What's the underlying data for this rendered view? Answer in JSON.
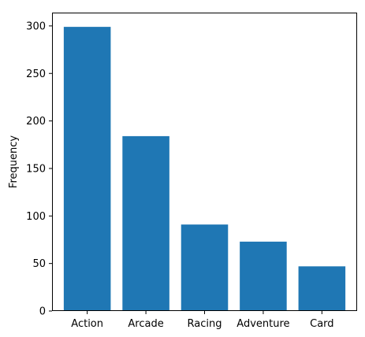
{
  "chart_data": {
    "type": "bar",
    "categories": [
      "Action",
      "Arcade",
      "Racing",
      "Adventure",
      "Card"
    ],
    "values": [
      299,
      184,
      91,
      73,
      47
    ],
    "title": "",
    "xlabel": "",
    "ylabel": "Frequency",
    "ylim": [
      0,
      314
    ],
    "yticks": [
      0,
      50,
      100,
      150,
      200,
      250,
      300
    ],
    "ytick_labels": [
      "0",
      "50",
      "100",
      "150",
      "200",
      "250",
      "300"
    ],
    "grid": false,
    "legend": "none",
    "bar_color": "#1f77b4"
  }
}
